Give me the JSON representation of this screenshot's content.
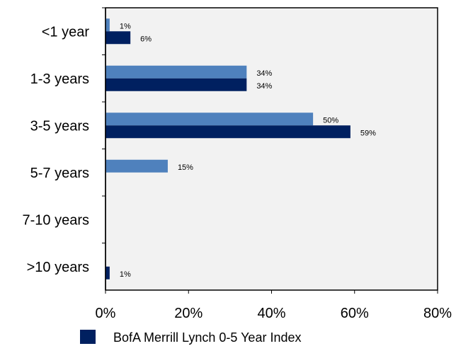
{
  "chart_data": {
    "type": "bar",
    "orientation": "horizontal",
    "title": "",
    "xlabel": "",
    "ylabel": "",
    "categories": [
      "<1 year",
      "1-3 years",
      "3-5 years",
      "5-7 years",
      "7-10 years",
      ">10 years"
    ],
    "xlim": [
      0,
      80
    ],
    "x_ticks": [
      0,
      20,
      40,
      60,
      80
    ],
    "x_tick_labels": [
      "0%",
      "20%",
      "40%",
      "60%",
      "80%"
    ],
    "grid": false,
    "legend_position": "bottom",
    "series": [
      {
        "name": "",
        "color": "#4f81bd",
        "values": [
          1,
          34,
          50,
          15,
          null,
          null
        ],
        "labels": [
          "1%",
          "34%",
          "50%",
          "15%",
          "",
          ""
        ]
      },
      {
        "name": "BofA Merrill Lynch 0-5 Year Index",
        "color": "#002060",
        "values": [
          6,
          34,
          59,
          null,
          null,
          1
        ],
        "labels": [
          "6%",
          "34%",
          "59%",
          "",
          "",
          "1%"
        ]
      }
    ]
  },
  "plot_background": "#f2f2f2"
}
